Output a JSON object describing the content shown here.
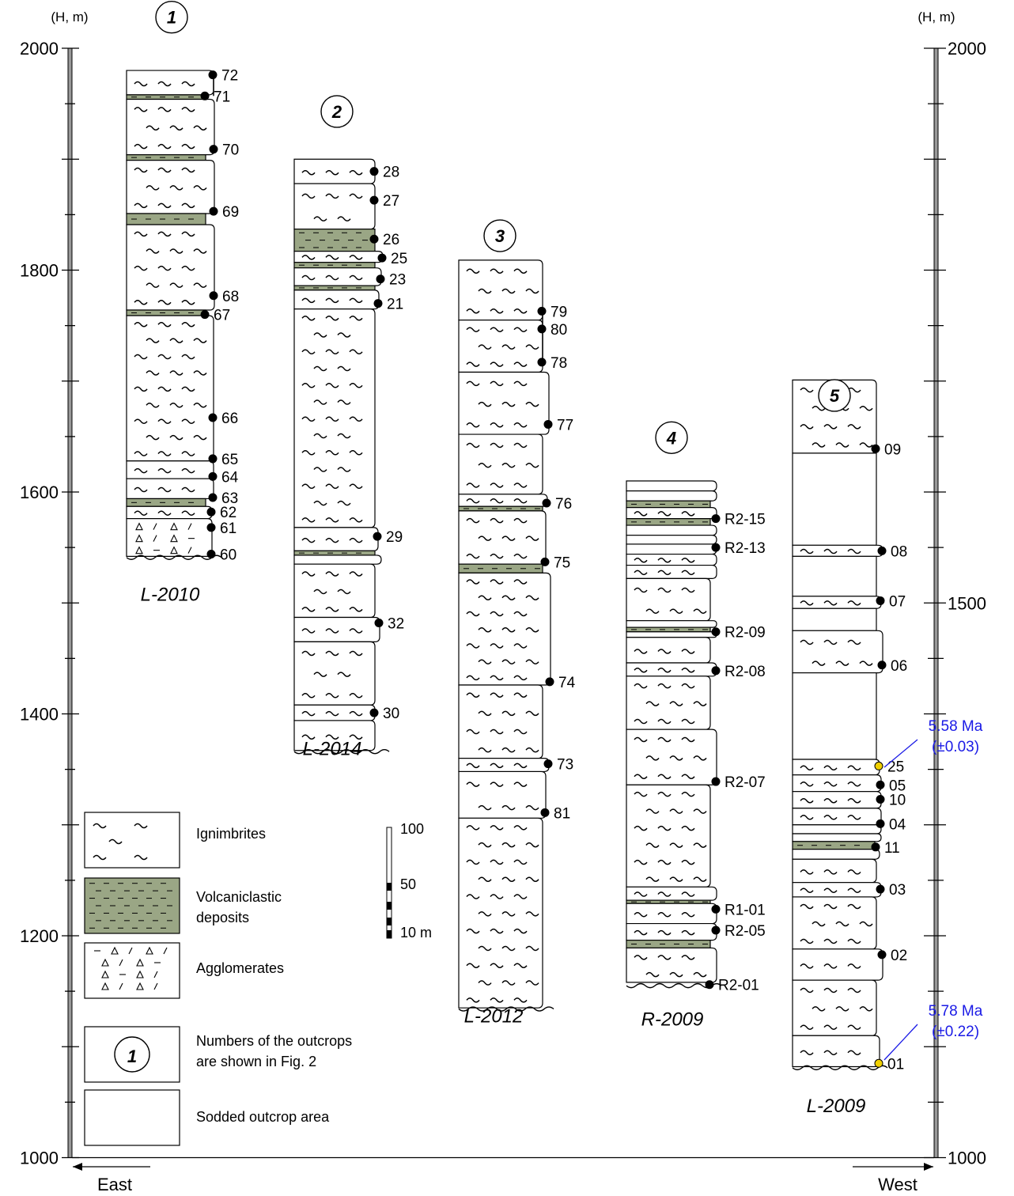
{
  "axis": {
    "unit_label": "(H, m)",
    "left_ticks": [
      {
        "v": 2000,
        "label": "2000"
      },
      {
        "v": 1800,
        "label": "1800"
      },
      {
        "v": 1600,
        "label": "1600"
      },
      {
        "v": 1400,
        "label": "1400"
      },
      {
        "v": 1200,
        "label": "1200"
      },
      {
        "v": 1000,
        "label": "1000"
      }
    ],
    "right_ticks": [
      {
        "v": 2000,
        "label": "2000"
      },
      {
        "v": 1500,
        "label": "1500"
      },
      {
        "v": 1000,
        "label": "1000"
      }
    ],
    "east_label": "East",
    "west_label": "West"
  },
  "sections": [
    {
      "number": "1",
      "name": "L-2010",
      "samples": [
        {
          "id": "72",
          "h": 1976
        },
        {
          "id": "71",
          "h": 1957
        },
        {
          "id": "70",
          "h": 1909
        },
        {
          "id": "69",
          "h": 1853
        },
        {
          "id": "68",
          "h": 1777
        },
        {
          "id": "67",
          "h": 1760
        },
        {
          "id": "66",
          "h": 1667
        },
        {
          "id": "65",
          "h": 1630
        },
        {
          "id": "64",
          "h": 1614
        },
        {
          "id": "63",
          "h": 1595
        },
        {
          "id": "62",
          "h": 1582
        },
        {
          "id": "61",
          "h": 1568
        },
        {
          "id": "60",
          "h": 1544
        }
      ]
    },
    {
      "number": "2",
      "name": "L-2014",
      "samples": [
        {
          "id": "28",
          "h": 1889
        },
        {
          "id": "27",
          "h": 1863
        },
        {
          "id": "26",
          "h": 1828
        },
        {
          "id": "25",
          "h": 1811
        },
        {
          "id": "23",
          "h": 1792
        },
        {
          "id": "21",
          "h": 1770
        },
        {
          "id": "29",
          "h": 1560
        },
        {
          "id": "32",
          "h": 1482
        },
        {
          "id": "30",
          "h": 1401
        }
      ]
    },
    {
      "number": "3",
      "name": "L-2012",
      "samples": [
        {
          "id": "79",
          "h": 1763
        },
        {
          "id": "80",
          "h": 1747
        },
        {
          "id": "78",
          "h": 1717
        },
        {
          "id": "77",
          "h": 1661
        },
        {
          "id": "76",
          "h": 1590
        },
        {
          "id": "75",
          "h": 1537
        },
        {
          "id": "74",
          "h": 1429
        },
        {
          "id": "73",
          "h": 1355
        },
        {
          "id": "81",
          "h": 1311
        }
      ]
    },
    {
      "number": "4",
      "name": "R-2009",
      "samples": [
        {
          "id": "R2-15",
          "h": 1576
        },
        {
          "id": "R2-13",
          "h": 1550
        },
        {
          "id": "R2-09",
          "h": 1474
        },
        {
          "id": "R2-08",
          "h": 1439
        },
        {
          "id": "R2-07",
          "h": 1339
        },
        {
          "id": "R1-01",
          "h": 1224
        },
        {
          "id": "R2-05",
          "h": 1205
        },
        {
          "id": "R2-01",
          "h": 1156
        }
      ]
    },
    {
      "number": "5",
      "name": "L-2009",
      "samples": [
        {
          "id": "09",
          "h": 1639
        },
        {
          "id": "08",
          "h": 1547
        },
        {
          "id": "07",
          "h": 1502
        },
        {
          "id": "06",
          "h": 1444
        },
        {
          "id": "25",
          "h": 1353
        },
        {
          "id": "05",
          "h": 1336
        },
        {
          "id": "10",
          "h": 1323
        },
        {
          "id": "04",
          "h": 1301
        },
        {
          "id": "11",
          "h": 1280
        },
        {
          "id": "03",
          "h": 1242
        },
        {
          "id": "02",
          "h": 1183
        },
        {
          "id": "01",
          "h": 1085
        }
      ]
    }
  ],
  "ages": [
    {
      "age": "5.58 Ma",
      "err": "(±0.03)",
      "sample_h": 1353
    },
    {
      "age": "5.78 Ma",
      "err": "(±0.22)",
      "sample_h": 1085
    }
  ],
  "scale_bar": {
    "labels": [
      "100",
      "50",
      "10 m"
    ]
  },
  "legend": {
    "ignimbrites": "Ignimbrites",
    "volcaniclastic_1": "Volcaniclastic",
    "volcaniclastic_2": "deposits",
    "agglomerates": "Agglomerates",
    "outcrop_number_symbol": "1",
    "outcrop_numbers_1": "Numbers of the outcrops",
    "outcrop_numbers_2": "are shown in Fig. 2",
    "sodded": "Sodded outcrop area"
  },
  "colors": {
    "volcaniclastic": "#9aa685",
    "age_marker": "#f0d000",
    "age_text": "#1a1ae6",
    "axis_gray": "#999999"
  }
}
